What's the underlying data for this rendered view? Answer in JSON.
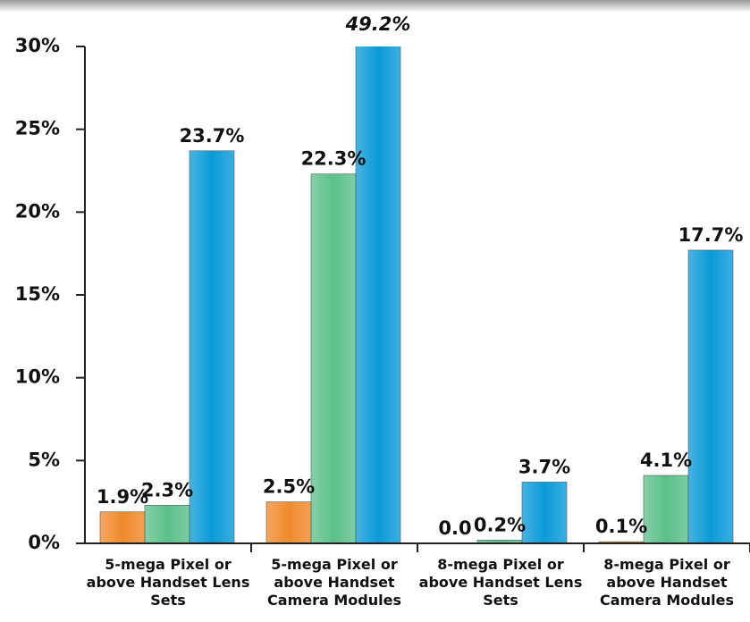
{
  "chart_data": {
    "type": "bar",
    "categories": [
      "5-mega Pixel or above Handset Lens Sets",
      "5-mega Pixel or above Handset Camera Modules",
      "8-mega Pixel or above Handset Lens Sets",
      "8-mega Pixel or above Handset Camera Modules"
    ],
    "series": [
      {
        "color": "#f08a2c",
        "values": [
          1.9,
          2.5,
          0.0,
          0.1
        ],
        "value_labels": [
          "1.9%",
          "2.5%",
          "0.0",
          "0.1%"
        ]
      },
      {
        "color": "#5cc08a",
        "values": [
          2.3,
          22.3,
          0.2,
          4.1
        ],
        "value_labels": [
          "2.3%",
          "22.3%",
          "0.2%",
          "4.1%"
        ]
      },
      {
        "color": "#0a9ad8",
        "values": [
          23.7,
          49.2,
          3.7,
          17.7
        ],
        "value_labels": [
          "23.7%",
          "49.2%",
          "3.7%",
          "17.7%"
        ]
      }
    ],
    "ylim": [
      0,
      30
    ],
    "yticks": [
      {
        "value": 0,
        "label": "0%"
      },
      {
        "value": 5,
        "label": "5%"
      },
      {
        "value": 10,
        "label": "10%"
      },
      {
        "value": 15,
        "label": "15%"
      },
      {
        "value": 20,
        "label": "20%"
      },
      {
        "value": 25,
        "label": "25%"
      },
      {
        "value": 30,
        "label": "30%"
      }
    ]
  }
}
